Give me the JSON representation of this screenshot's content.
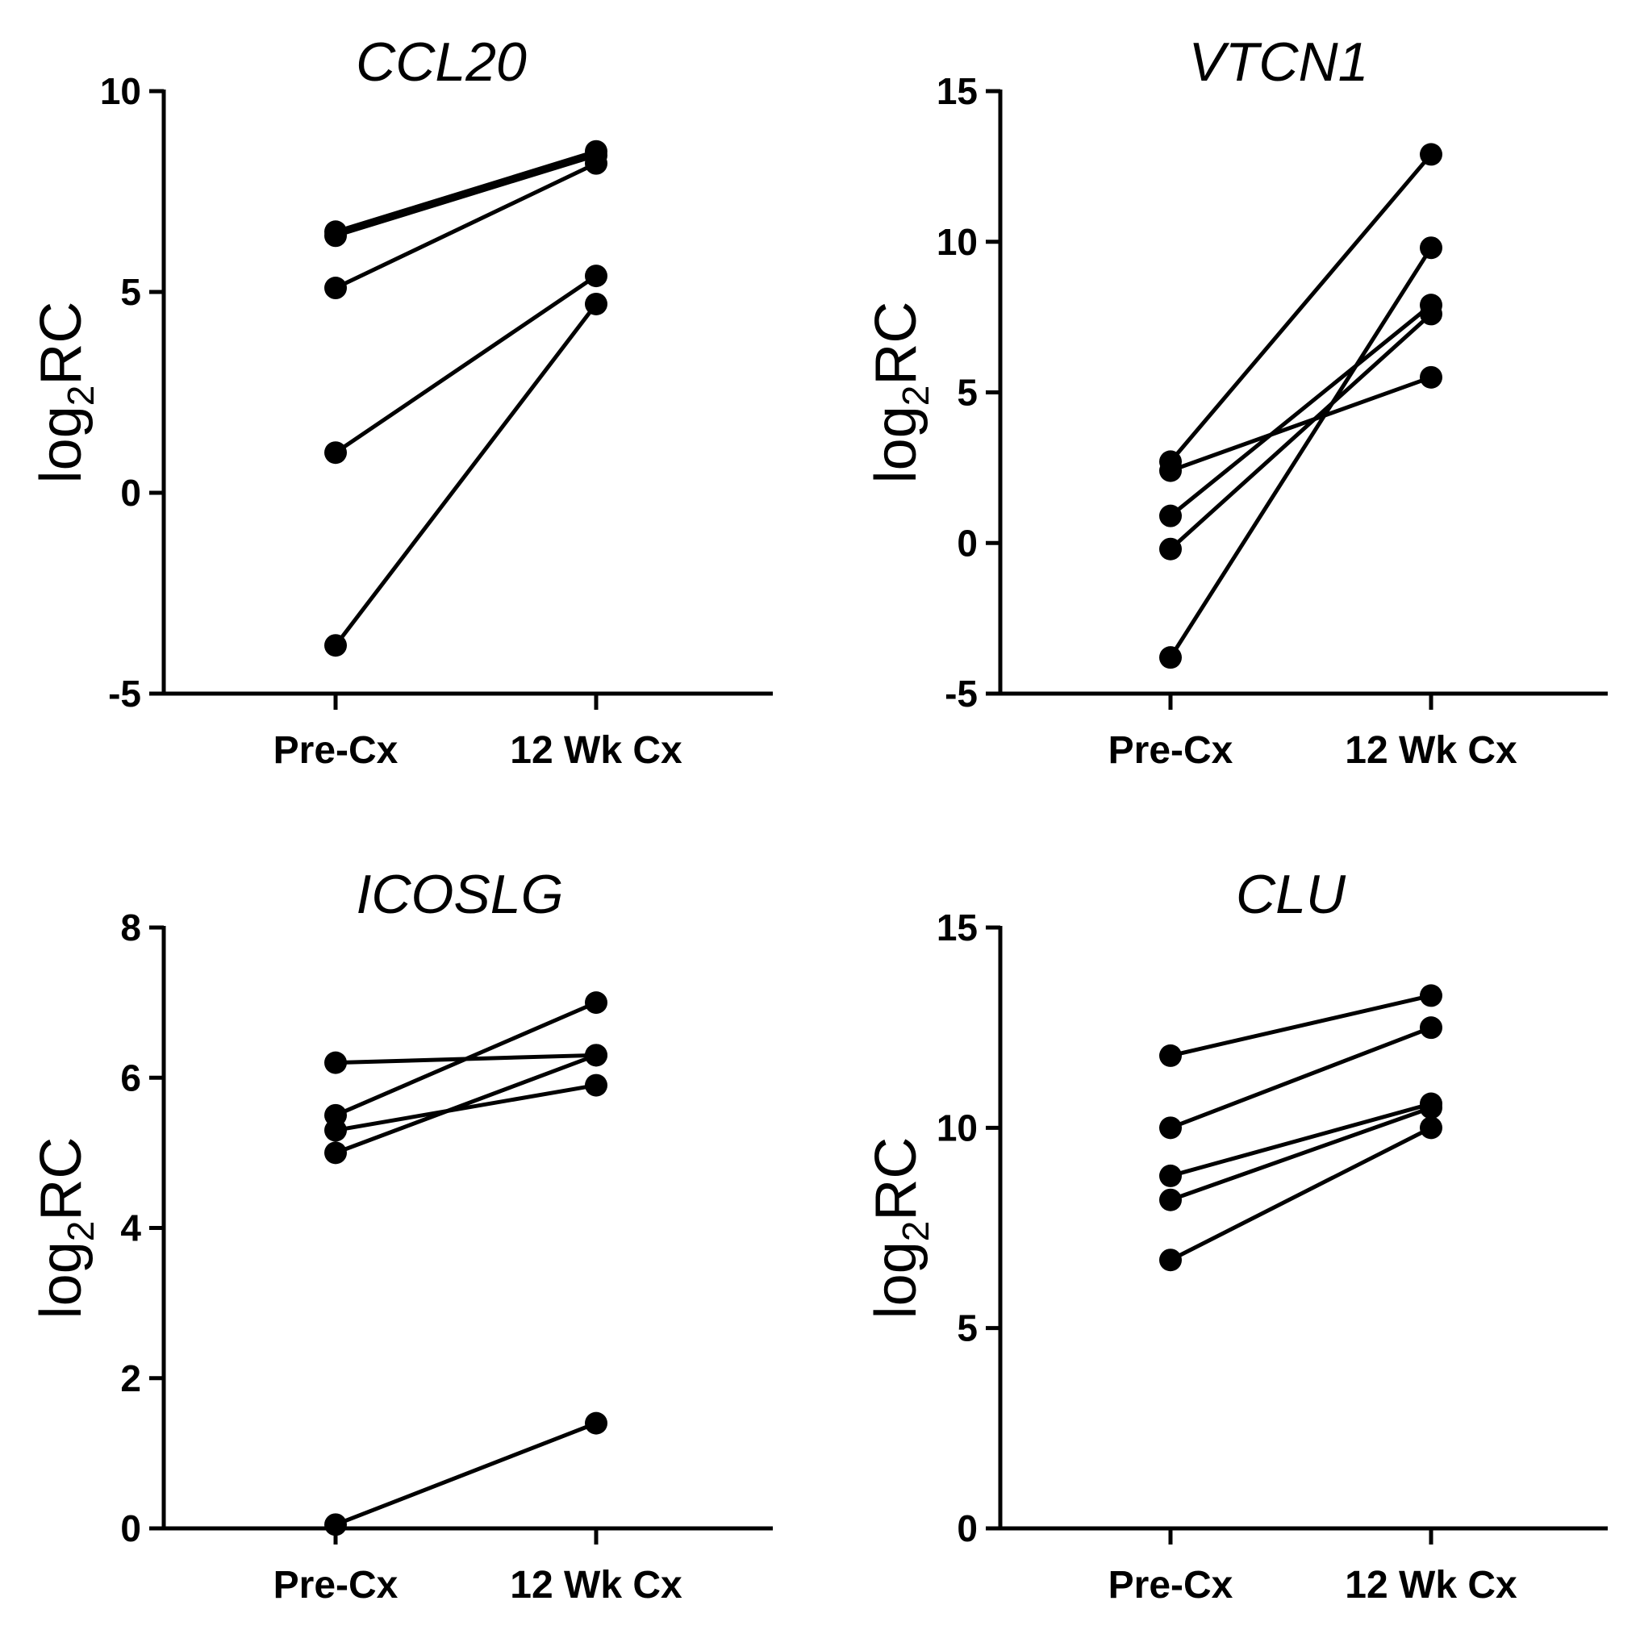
{
  "chart_data": [
    {
      "type": "line",
      "title": "CCL20",
      "ylabel_main": "log",
      "ylabel_sub": "2",
      "ylabel_tail": "RC",
      "categories": [
        "Pre-Cx",
        "12 Wk Cx"
      ],
      "ylim": [
        -5,
        10
      ],
      "yticks": [
        -5,
        0,
        5,
        10
      ],
      "ytick_labels": [
        "-5",
        "0",
        "5",
        "10"
      ],
      "series": [
        {
          "values": [
            6.5,
            8.5
          ]
        },
        {
          "values": [
            6.4,
            8.4
          ]
        },
        {
          "values": [
            5.1,
            8.2
          ]
        },
        {
          "values": [
            1.0,
            5.4
          ]
        },
        {
          "values": [
            -3.8,
            4.7
          ]
        }
      ]
    },
    {
      "type": "line",
      "title": "VTCN1",
      "ylabel_main": "log",
      "ylabel_sub": "2",
      "ylabel_tail": "RC",
      "categories": [
        "Pre-Cx",
        "12 Wk Cx"
      ],
      "ylim": [
        -5,
        15
      ],
      "yticks": [
        -5,
        0,
        5,
        10,
        15
      ],
      "ytick_labels": [
        "-5",
        "0",
        "5",
        "10",
        "15"
      ],
      "series": [
        {
          "values": [
            2.7,
            12.9
          ]
        },
        {
          "values": [
            2.4,
            5.5
          ]
        },
        {
          "values": [
            0.9,
            7.9
          ]
        },
        {
          "values": [
            -0.2,
            7.6
          ]
        },
        {
          "values": [
            -3.8,
            9.8
          ]
        }
      ]
    },
    {
      "type": "line",
      "title": "ICOSLG",
      "ylabel_main": "log",
      "ylabel_sub": "2",
      "ylabel_tail": "RC",
      "categories": [
        "Pre-Cx",
        "12 Wk Cx"
      ],
      "ylim": [
        0,
        8
      ],
      "yticks": [
        0,
        2,
        4,
        6,
        8
      ],
      "ytick_labels": [
        "0",
        "2",
        "4",
        "6",
        "8"
      ],
      "series": [
        {
          "values": [
            6.2,
            6.3
          ]
        },
        {
          "values": [
            5.5,
            7.0
          ]
        },
        {
          "values": [
            5.3,
            5.9
          ]
        },
        {
          "values": [
            5.0,
            6.3
          ]
        },
        {
          "values": [
            0.05,
            1.4
          ]
        }
      ]
    },
    {
      "type": "line",
      "title": "CLU",
      "ylabel_main": "log",
      "ylabel_sub": "2",
      "ylabel_tail": "RC",
      "categories": [
        "Pre-Cx",
        "12 Wk Cx"
      ],
      "ylim": [
        0,
        15
      ],
      "yticks": [
        0,
        5,
        10,
        15
      ],
      "ytick_labels": [
        "0",
        "5",
        "10",
        "15"
      ],
      "series": [
        {
          "values": [
            11.8,
            13.3
          ]
        },
        {
          "values": [
            10.0,
            12.5
          ]
        },
        {
          "values": [
            8.8,
            10.6
          ]
        },
        {
          "values": [
            8.2,
            10.5
          ]
        },
        {
          "values": [
            6.7,
            10.0
          ]
        }
      ]
    }
  ]
}
